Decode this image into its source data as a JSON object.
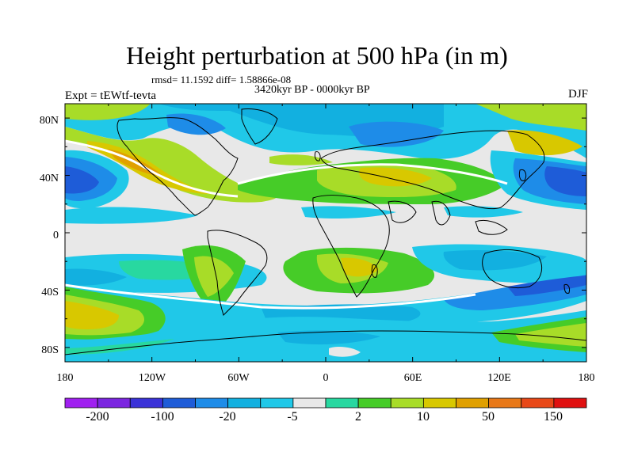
{
  "title": "Height perturbation at 500 hPa (in m)",
  "stats": "rmsd= 11.1592 diff= 1.58866e-08",
  "period": "3420kyr BP - 0000kyr BP",
  "experiment": "Expt = tEWtf-tevta",
  "season": "DJF",
  "lat_ticks": [
    "80N",
    "40N",
    "0",
    "40S",
    "80S"
  ],
  "lon_ticks": [
    "180",
    "120W",
    "60W",
    "0",
    "60E",
    "120E",
    "180"
  ],
  "colorbar": {
    "colors": [
      "#a020f0",
      "#7b25e0",
      "#3a32d8",
      "#1e5cd8",
      "#1e8ce8",
      "#12b0e0",
      "#20c8e8",
      "#e8e8e8",
      "#28d8a0",
      "#46cc28",
      "#a8dc28",
      "#d8c800",
      "#e0a000",
      "#e87818",
      "#e84818",
      "#e01010"
    ],
    "labels": [
      "-200",
      "-100",
      "-20",
      "-5",
      "2",
      "10",
      "50",
      "150"
    ]
  }
}
